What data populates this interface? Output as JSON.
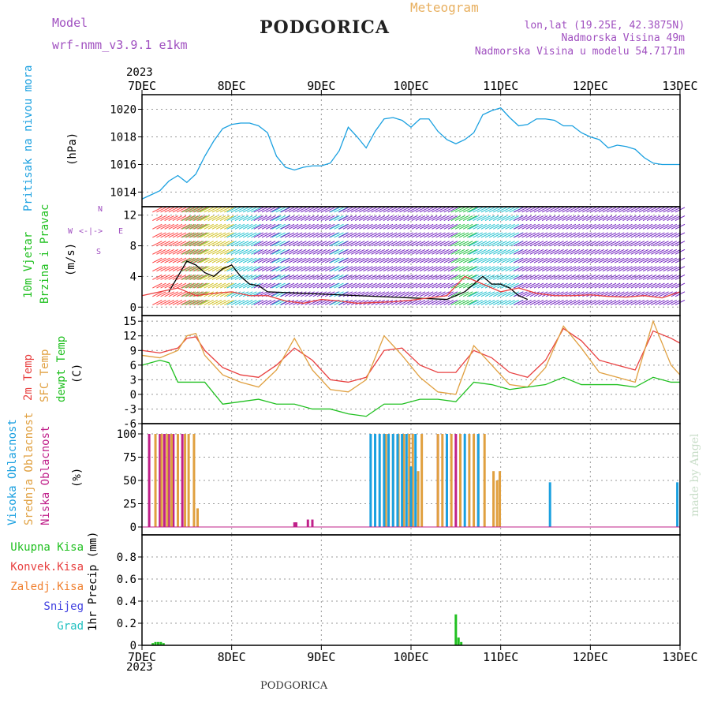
{
  "header": {
    "model_label": "Model",
    "model_name": "wrf-nmm_v3.9.1 e1km",
    "station": "PODGORICA",
    "product": "Meteogram",
    "coords": "lon,lat (19.25E, 42.3875N)",
    "elevation": "Nadmorska Visina 49m",
    "model_elevation": "Nadmorska Visina u modelu 54.7171m",
    "year": "2023",
    "footer_station": "PODGORICA",
    "credit": "made by Angel"
  },
  "colors": {
    "pressure": "#1aa0e0",
    "t2m": "#e84040",
    "sfc": "#e0a040",
    "dewpt": "#20c020",
    "high": "#1aa0e0",
    "mid": "#e0a040",
    "low": "#c0208a",
    "precip": "#20c020",
    "convective": "#e84040",
    "frozen": "#f08030",
    "snow": "#4040e0",
    "hail": "#20c0c0",
    "wind_purple": "#7020c0",
    "wind_cyan": "#20c0d0",
    "wind_speed": "#000000",
    "wind_gust": "#e84040"
  },
  "chart_data": {
    "type": "line",
    "x_axis": {
      "start": "2023-12-07T00:00",
      "end": "2023-12-13T00:00",
      "ticks": [
        "7DEC",
        "8DEC",
        "9DEC",
        "10DEC",
        "11DEC",
        "12DEC",
        "13DEC"
      ],
      "year": "2023"
    },
    "panels": [
      {
        "id": "pressure",
        "ylabel": [
          "Pritisak na nivou mora",
          "(hPa)"
        ],
        "ylim": [
          1013,
          1021
        ],
        "yticks": [
          1014,
          1016,
          1018,
          1020
        ],
        "series": [
          {
            "key": "pressure",
            "x": [
              0,
              0.1,
              0.2,
              0.3,
              0.4,
              0.5,
              0.6,
              0.7,
              0.8,
              0.9,
              1.0,
              1.1,
              1.2,
              1.3,
              1.4,
              1.5,
              1.6,
              1.7,
              1.8,
              1.9,
              2.0,
              2.1,
              2.2,
              2.3,
              2.4,
              2.5,
              2.6,
              2.7,
              2.8,
              2.9,
              3.0,
              3.1,
              3.2,
              3.3,
              3.4,
              3.5,
              3.6,
              3.7,
              3.8,
              3.9,
              4.0,
              4.1,
              4.2,
              4.3,
              4.4,
              4.5,
              4.6,
              4.7,
              4.8,
              4.9,
              5.0,
              5.1,
              5.2,
              5.3,
              5.4,
              5.5,
              5.6,
              5.7,
              5.8,
              5.9,
              6.0
            ],
            "y": [
              1013.5,
              1013.8,
              1014.1,
              1014.8,
              1015.2,
              1014.7,
              1015.3,
              1016.6,
              1017.7,
              1018.6,
              1018.9,
              1019.0,
              1019.0,
              1018.8,
              1018.3,
              1016.6,
              1015.8,
              1015.6,
              1015.8,
              1015.9,
              1015.9,
              1016.1,
              1017.0,
              1018.7,
              1018.0,
              1017.2,
              1018.4,
              1019.3,
              1019.4,
              1019.2,
              1018.7,
              1019.3,
              1019.3,
              1018.4,
              1017.8,
              1017.5,
              1017.8,
              1018.3,
              1019.6,
              1019.9,
              1020.1,
              1019.4,
              1018.8,
              1018.9,
              1019.3,
              1019.3,
              1019.2,
              1018.8,
              1018.8,
              1018.3,
              1018.0,
              1017.8,
              1017.2,
              1017.4,
              1017.3,
              1017.1,
              1016.5,
              1016.1,
              1016.0,
              1016.0,
              1016.0
            ]
          }
        ]
      },
      {
        "id": "wind",
        "ylabel": [
          "10m Vjetar",
          "Brzina i Pravac",
          "(m/s)"
        ],
        "compass": [
          "N",
          "W",
          "E",
          "S"
        ],
        "ylim": [
          -1,
          13
        ],
        "yticks": [
          0,
          4,
          8,
          12
        ],
        "series": [
          {
            "key": "wind_speed",
            "x": [
              0.3,
              0.4,
              0.5,
              0.6,
              0.7,
              0.8,
              0.9,
              1.0,
              1.1,
              1.2,
              1.3,
              1.4,
              3.4,
              3.5,
              3.6,
              3.7,
              3.8,
              3.9,
              4.0,
              4.1,
              4.2,
              4.3
            ],
            "y": [
              2,
              4,
              6,
              5.5,
              4.5,
              4,
              5,
              5.5,
              4,
              3,
              2.8,
              2,
              1,
              1.5,
              2,
              3,
              4,
              3,
              3,
              2.5,
              1.5,
              1
            ]
          },
          {
            "key": "wind_gust",
            "x": [
              0,
              0.2,
              0.4,
              0.6,
              0.8,
              1.0,
              1.2,
              1.4,
              1.6,
              1.8,
              2.0,
              2.2,
              2.4,
              2.6,
              2.8,
              3.0,
              3.2,
              3.4,
              3.6,
              3.8,
              4.0,
              4.2,
              4.4,
              4.6,
              4.8,
              5.0,
              5.2,
              5.4,
              5.6,
              5.8,
              6.0
            ],
            "y": [
              1.5,
              2,
              2.5,
              1.5,
              1.8,
              2,
              1.5,
              1.5,
              0.8,
              0.5,
              1,
              0.8,
              0.5,
              0.6,
              0.7,
              0.9,
              1.2,
              1.5,
              4,
              3,
              2,
              2.5,
              1.8,
              1.5,
              1.5,
              1.6,
              1.4,
              1.3,
              1.5,
              1.2,
              2
            ]
          }
        ]
      },
      {
        "id": "temperature",
        "ylabel": [
          "2m Temp",
          "SFC Temp",
          "dewpt Temp",
          "(C)"
        ],
        "ylim": [
          -6,
          16
        ],
        "yticks": [
          -6,
          -3,
          0,
          3,
          6,
          9,
          12,
          15
        ],
        "series": [
          {
            "key": "t2m",
            "name": "2m Temp",
            "x": [
              0,
              0.2,
              0.4,
              0.5,
              0.6,
              0.7,
              0.9,
              1.1,
              1.3,
              1.5,
              1.7,
              1.9,
              2.1,
              2.3,
              2.5,
              2.7,
              2.9,
              3.1,
              3.3,
              3.5,
              3.7,
              3.9,
              4.1,
              4.3,
              4.5,
              4.7,
              4.9,
              5.1,
              5.3,
              5.5,
              5.7,
              5.9,
              6.0
            ],
            "y": [
              9,
              8.5,
              9.5,
              11.5,
              11.8,
              9,
              5.5,
              4,
              3.5,
              6,
              9.5,
              7,
              3,
              2.5,
              3.5,
              9,
              9.5,
              6,
              4.5,
              4.5,
              9,
              7.5,
              4.5,
              3.5,
              7,
              13.5,
              11,
              7,
              6,
              5,
              13,
              11.5,
              10.5
            ]
          },
          {
            "key": "sfc",
            "name": "SFC Temp",
            "x": [
              0,
              0.2,
              0.4,
              0.5,
              0.6,
              0.7,
              0.9,
              1.1,
              1.3,
              1.5,
              1.7,
              1.9,
              2.1,
              2.3,
              2.5,
              2.7,
              2.9,
              3.1,
              3.3,
              3.5,
              3.7,
              3.9,
              4.1,
              4.3,
              4.5,
              4.7,
              4.9,
              5.1,
              5.3,
              5.5,
              5.7,
              5.9,
              6.0
            ],
            "y": [
              8,
              7.5,
              9,
              12,
              12.5,
              8,
              4,
              2.5,
              1.5,
              5,
              11.5,
              5,
              1,
              0.5,
              3,
              12,
              8,
              3.5,
              0.5,
              0,
              10,
              6,
              2,
              1.5,
              5.5,
              14,
              9.5,
              4.5,
              3.5,
              2.5,
              15,
              6,
              4
            ]
          },
          {
            "key": "dewpt",
            "name": "dewpt Temp",
            "x": [
              0,
              0.2,
              0.3,
              0.4,
              0.5,
              0.7,
              0.9,
              1.1,
              1.3,
              1.5,
              1.7,
              1.9,
              2.1,
              2.3,
              2.5,
              2.7,
              2.9,
              3.1,
              3.3,
              3.5,
              3.7,
              3.9,
              4.1,
              4.3,
              4.5,
              4.7,
              4.9,
              5.1,
              5.3,
              5.5,
              5.7,
              5.9,
              6.0
            ],
            "y": [
              6,
              7,
              6.5,
              2.5,
              2.5,
              2.5,
              -2,
              -1.5,
              -1,
              -2,
              -2,
              -3,
              -3,
              -4,
              -4.5,
              -2,
              -2,
              -1,
              -1,
              -1.5,
              2.5,
              2,
              1,
              1.5,
              2,
              3.5,
              2,
              2,
              2,
              1.5,
              3.5,
              2.5,
              2.5
            ]
          }
        ]
      },
      {
        "id": "clouds",
        "ylabel": [
          "Visoka Oblacnost",
          "Srednja Oblacnost",
          "Niska Oblacnost",
          "(%)"
        ],
        "ylim": [
          0,
          100
        ],
        "yticks": [
          0,
          25,
          50,
          75,
          100
        ],
        "bar_series": [
          {
            "key": "low",
            "name": "Niska Oblacnost",
            "x": [
              0.08,
              0.2,
              0.25,
              0.3,
              0.35,
              0.45,
              1.7,
              1.72,
              1.85,
              1.9,
              3.3,
              3.4,
              3.5
            ],
            "y": [
              100,
              100,
              100,
              100,
              100,
              100,
              5,
              5,
              8,
              8,
              100,
              90,
              100
            ]
          },
          {
            "key": "mid",
            "name": "Srednja Oblacnost",
            "x": [
              0.15,
              0.22,
              0.28,
              0.33,
              0.4,
              0.48,
              0.52,
              0.58,
              0.62,
              2.72,
              2.8,
              2.86,
              2.92,
              2.98,
              3.02,
              3.08,
              3.12,
              3.3,
              3.35,
              3.45,
              3.55,
              3.65,
              3.7,
              3.75,
              3.82,
              3.92,
              3.96,
              3.99
            ],
            "y": [
              100,
              100,
              100,
              100,
              100,
              100,
              100,
              100,
              20,
              100,
              100,
              100,
              100,
              100,
              100,
              60,
              100,
              100,
              100,
              100,
              100,
              100,
              100,
              100,
              100,
              60,
              50,
              60
            ]
          },
          {
            "key": "high",
            "name": "Visoka Oblacnost",
            "x": [
              2.55,
              2.6,
              2.65,
              2.7,
              2.75,
              2.8,
              2.85,
              2.9,
              2.95,
              3.0,
              3.05,
              3.4,
              3.6,
              3.75,
              4.55,
              5.97
            ],
            "y": [
              100,
              100,
              100,
              100,
              100,
              100,
              100,
              100,
              100,
              65,
              100,
              100,
              100,
              100,
              48,
              48
            ]
          }
        ]
      },
      {
        "id": "precip",
        "ylabel": [
          "1hr Precip (mm)"
        ],
        "legend": [
          "Ukupna Kisa",
          "Konvek.Kisa",
          "Zaledj.Kisa",
          "Snijeg",
          "Grad"
        ],
        "ylim": [
          0,
          1.0
        ],
        "yticks": [
          0,
          0.2,
          0.4,
          0.6,
          0.8
        ],
        "bar_series": [
          {
            "key": "precip",
            "name": "Ukupna Kisa",
            "x": [
              0.12,
              0.15,
              0.18,
              0.21,
              0.24,
              3.5,
              3.53,
              3.56
            ],
            "y": [
              0.02,
              0.03,
              0.03,
              0.03,
              0.02,
              0.28,
              0.07,
              0.03
            ]
          }
        ]
      }
    ]
  }
}
